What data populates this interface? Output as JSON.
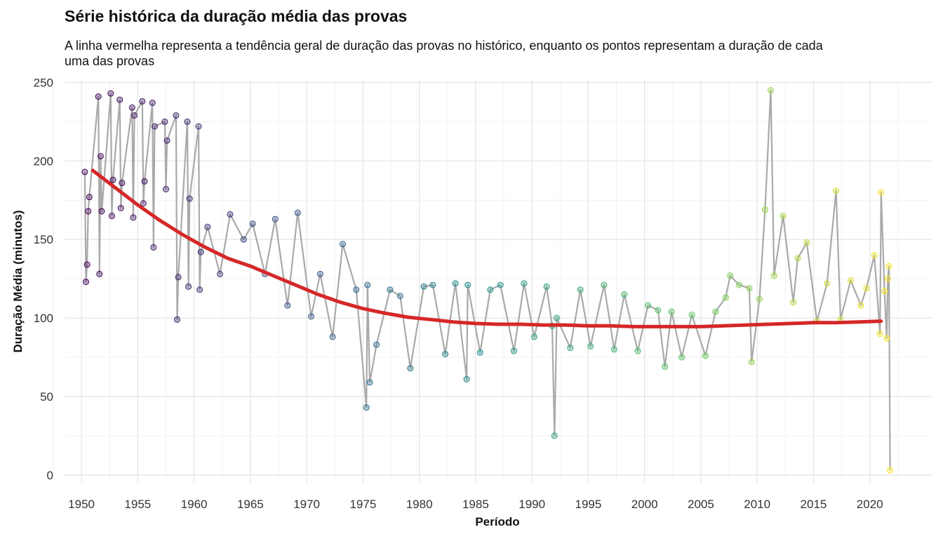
{
  "title": "Série histórica da duração média das provas",
  "subtitle": "A linha vermelha representa a tendência geral de duração das provas no histórico, enquanto os pontos representam a duração de cada uma das provas",
  "colors": {
    "trend": "#d62728",
    "series_line": "#a9a9a9",
    "grid_major": "#e6e6e6",
    "grid_minor": "#f2f2f2",
    "palette": [
      "#440154",
      "#3b528b",
      "#21918c",
      "#5ec962",
      "#fde725"
    ]
  },
  "chart_data": {
    "type": "scatter",
    "title": "Série histórica da duração média das provas",
    "subtitle": "A linha vermelha representa a tendência geral de duração das provas no histórico, enquanto os pontos representam a duração de cada uma das provas",
    "xlabel": "Período",
    "ylabel": "Duração Média (minutos)",
    "xlim": [
      1948.5,
      2025.5
    ],
    "ylim": [
      -5,
      252
    ],
    "x_ticks": [
      1950,
      1955,
      1960,
      1965,
      1970,
      1975,
      1980,
      1985,
      1990,
      1995,
      2000,
      2005,
      2010,
      2015,
      2020
    ],
    "y_ticks": [
      0,
      50,
      100,
      150,
      200,
      250
    ],
    "grid": true,
    "legend": "none",
    "series": [
      {
        "kind": "points_connected",
        "x": [
          1950.3,
          1950.4,
          1950.5,
          1950.6,
          1950.7,
          1951.5,
          1951.6,
          1951.7,
          1951.8,
          1952.6,
          1952.7,
          1952.8,
          1953.4,
          1953.5,
          1953.6,
          1954.5,
          1954.6,
          1954.7,
          1955.4,
          1955.5,
          1955.6,
          1956.3,
          1956.4,
          1956.5,
          1957.4,
          1957.5,
          1957.6,
          1958.4,
          1958.5,
          1958.6,
          1959.4,
          1959.5,
          1959.6,
          1960.4,
          1960.5,
          1960.6,
          1961.2,
          1962.3,
          1963.2,
          1964.4,
          1965.2,
          1966.3,
          1967.2,
          1968.3,
          1969.2,
          1970.4,
          1971.2,
          1972.3,
          1973.2,
          1974.4,
          1975.3,
          1975.4,
          1975.6,
          1976.2,
          1977.4,
          1978.3,
          1979.2,
          1980.4,
          1981.2,
          1982.3,
          1983.2,
          1984.2,
          1984.3,
          1985.4,
          1986.3,
          1987.2,
          1988.4,
          1989.3,
          1990.2,
          1991.3,
          1991.8,
          1992.0,
          1992.2,
          1993.4,
          1994.3,
          1995.2,
          1996.4,
          1997.3,
          1998.2,
          1999.4,
          2000.3,
          2001.2,
          2001.8,
          2002.4,
          2003.3,
          2004.2,
          2005.4,
          2006.3,
          2007.2,
          2007.6,
          2008.4,
          2009.3,
          2009.5,
          2010.2,
          2010.7,
          2011.2,
          2011.5,
          2012.3,
          2013.2,
          2013.6,
          2014.4,
          2015.3,
          2016.2,
          2017.0,
          2017.4,
          2018.3,
          2019.2,
          2019.7,
          2020.4,
          2020.9,
          2021.0,
          2021.3,
          2021.5,
          2021.6,
          2021.7,
          2021.8
        ],
        "y": [
          193,
          123,
          134,
          168,
          177,
          241,
          128,
          203,
          168,
          243,
          165,
          188,
          239,
          170,
          186,
          234,
          164,
          229,
          238,
          173,
          187,
          237,
          145,
          222,
          225,
          182,
          213,
          229,
          99,
          126,
          225,
          120,
          176,
          222,
          118,
          142,
          158,
          128,
          166,
          150,
          160,
          128,
          163,
          108,
          167,
          101,
          128,
          88,
          147,
          118,
          43,
          121,
          59,
          83,
          118,
          114,
          68,
          120,
          121,
          77,
          122,
          61,
          121,
          78,
          118,
          121,
          79,
          122,
          88,
          120,
          95,
          25,
          100,
          81,
          118,
          82,
          121,
          80,
          115,
          79,
          108,
          105,
          69,
          104,
          75,
          102,
          76,
          104,
          113,
          127,
          121,
          119,
          72,
          112,
          169,
          245,
          127,
          165,
          110,
          138,
          148,
          98,
          122,
          181,
          99,
          124,
          108,
          119,
          140,
          90,
          180,
          117,
          87,
          125,
          133,
          3
        ]
      },
      {
        "kind": "trend",
        "name": "",
        "x": [
          1951,
          1953,
          1955,
          1957,
          1959,
          1961,
          1963,
          1965,
          1967,
          1969,
          1971,
          1973,
          1975,
          1977,
          1979,
          1981,
          1983,
          1985,
          1987,
          1989,
          1991,
          1993,
          1995,
          1997,
          1999,
          2001,
          2003,
          2005,
          2007,
          2009,
          2011,
          2013,
          2015,
          2017,
          2019,
          2021
        ],
        "y": [
          194,
          183,
          172,
          162,
          153,
          145,
          138,
          133,
          127,
          121,
          115,
          110,
          106,
          103,
          100.5,
          99,
          97.5,
          96.5,
          96,
          96,
          95.5,
          95.5,
          95,
          95,
          94.5,
          94.5,
          94.5,
          94.5,
          95,
          95.5,
          96,
          96.5,
          97,
          97,
          97.5,
          98
        ]
      }
    ]
  }
}
